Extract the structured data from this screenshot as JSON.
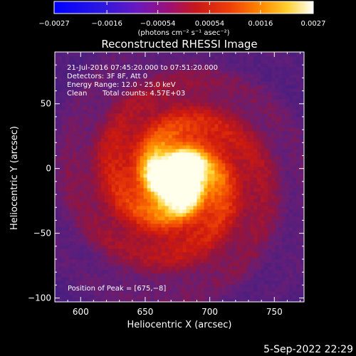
{
  "chart_data": {
    "type": "heatmap",
    "title": "Reconstructed RHESSI Image",
    "xlabel": "Heliocentric X (arcsec)",
    "ylabel": "Heliocentric Y (arcsec)",
    "xlim": [
      580,
      773
    ],
    "ylim": [
      -103,
      90
    ],
    "x_ticks": [
      600,
      650,
      700,
      750
    ],
    "y_ticks": [
      -100,
      -50,
      0,
      50
    ],
    "x_tick_labels": [
      "600",
      "650",
      "700",
      "750"
    ],
    "y_tick_labels": [
      "−100",
      "−50",
      "0",
      "50"
    ],
    "colormap": "red-temperature",
    "colorbar": {
      "range": [
        -0.0027,
        0.0027
      ],
      "ticks": [
        -0.0027,
        -0.0016,
        -0.00054,
        0.00054,
        0.0016,
        0.0027
      ],
      "tick_labels": [
        "−0.0027",
        "−0.0016",
        "−0.00054",
        "0.00054",
        "0.0016",
        "0.0027"
      ],
      "unit_label": "(photons cm⁻² s⁻¹ asec⁻²)"
    },
    "peak": [
      675,
      -8
    ],
    "annotations": {
      "time_range": "21-Jul-2016 07:45:20.000 to 07:51:20.000",
      "detectors": "Detectors: 3F 8F, Att 0",
      "energy_range": "Energy Range: 12.0 - 25.0 keV",
      "algorithm": "Clean",
      "total_counts": "Total counts: 4.57E+03",
      "peak_position": "Position of Peak = [675,−8]"
    },
    "colors": {
      "background": "#000000",
      "foreground": "#ffffff"
    }
  },
  "footer": {
    "date": "5-Sep-2022 22:29"
  }
}
